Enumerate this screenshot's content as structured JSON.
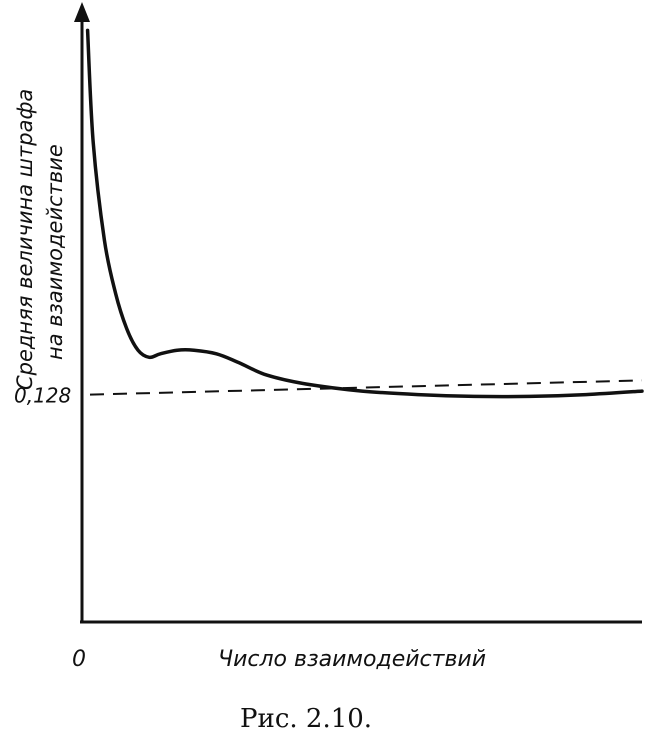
{
  "chart_data": {
    "type": "line",
    "title": "",
    "caption": "Рис. 2.10.",
    "xlabel": "Число взаимодействий",
    "ylabel_line1": "Средняя величина штрафа",
    "ylabel_line2": "на взаимодействие",
    "origin_label": "0",
    "x_range": [
      0,
      1
    ],
    "y_range": [
      0,
      0.34
    ],
    "grid": false,
    "legend": "none",
    "ytick": {
      "value": 0.128,
      "label": "0,128"
    },
    "reference_line": {
      "y": 0.128,
      "slope": 0.008,
      "style": "dashed"
    },
    "series": [
      {
        "x": [
          0.01,
          0.02,
          0.04,
          0.06,
          0.08,
          0.1,
          0.12,
          0.14,
          0.17,
          0.2,
          0.24,
          0.28,
          0.33,
          0.4,
          0.5,
          0.6,
          0.7,
          0.8,
          0.9,
          1.0
        ],
        "y": [
          0.333,
          0.27,
          0.215,
          0.185,
          0.165,
          0.153,
          0.149,
          0.151,
          0.153,
          0.153,
          0.151,
          0.146,
          0.139,
          0.134,
          0.13,
          0.128,
          0.127,
          0.127,
          0.128,
          0.13
        ]
      }
    ],
    "colors": {
      "ink": "#111111",
      "background": "#ffffff"
    }
  }
}
